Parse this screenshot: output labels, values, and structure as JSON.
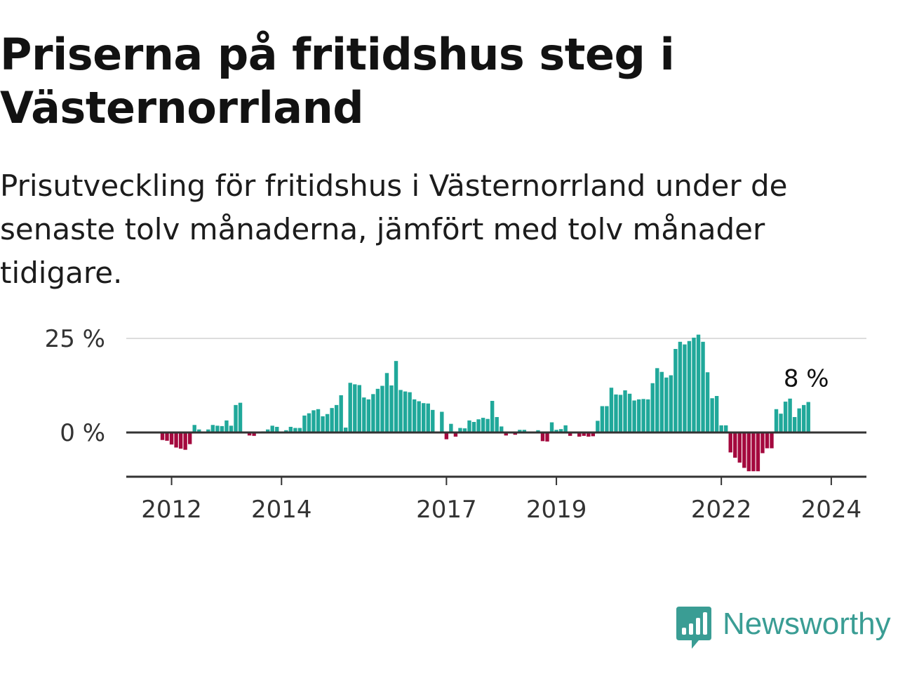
{
  "header": {
    "title": "Priserna på fritidshus steg i Västernorrland",
    "subtitle": "Prisutveckling för fritidshus i Västernorrland under de senaste tolv månaderna, jämfört med tolv månader tidigare."
  },
  "brand": {
    "name": "Newsworthy",
    "icon": "bar-chart-speech-icon",
    "color": "#3a9d94"
  },
  "chart_data": {
    "type": "bar",
    "x_start": "2011-11",
    "frequency": "monthly",
    "values": [
      -2.0,
      -2.2,
      -3.2,
      -4.0,
      -4.3,
      -4.6,
      -3.1,
      2.0,
      0.8,
      0.2,
      0.8,
      2.0,
      1.8,
      1.7,
      3.2,
      1.8,
      7.3,
      7.9,
      0.2,
      -0.8,
      -0.9,
      0.2,
      0.3,
      0.8,
      1.8,
      1.5,
      0.2,
      0.6,
      1.5,
      1.2,
      1.2,
      4.5,
      5.1,
      5.9,
      6.2,
      4.3,
      4.9,
      6.5,
      7.3,
      9.9,
      1.3,
      13.2,
      12.8,
      12.6,
      9.3,
      8.8,
      10.2,
      11.6,
      12.4,
      15.8,
      12.5,
      19.0,
      11.3,
      10.9,
      10.7,
      8.8,
      8.3,
      7.8,
      7.7,
      6.0,
      0.2,
      5.5,
      -1.8,
      2.3,
      -1.1,
      1.2,
      1.1,
      3.2,
      2.8,
      3.5,
      3.9,
      3.6,
      8.4,
      4.1,
      1.6,
      -0.8,
      0.1,
      -0.6,
      0.7,
      0.7,
      0.1,
      0.2,
      0.6,
      -2.3,
      -2.4,
      2.7,
      0.7,
      0.9,
      1.9,
      -0.9,
      -0.1,
      -1.1,
      -0.9,
      -1.1,
      -1.0,
      3.1,
      7.0,
      7.0,
      11.9,
      10.1,
      10.0,
      11.2,
      10.3,
      8.5,
      8.8,
      8.9,
      8.8,
      13.1,
      17.1,
      16.1,
      14.6,
      15.2,
      22.2,
      24.1,
      23.4,
      24.3,
      25.2,
      26.0,
      24.1,
      16.0,
      9.1,
      9.7,
      1.9,
      1.9,
      -5.3,
      -6.7,
      -8.0,
      -9.4,
      -10.3,
      -10.3,
      -10.3,
      -5.5,
      -4.2,
      -4.2,
      6.2,
      5.0,
      8.2,
      9.0,
      4.1,
      6.4,
      7.3,
      8.1
    ],
    "yticks": [
      0,
      25
    ],
    "ytick_labels": [
      "0 %",
      "25 %"
    ],
    "ylim": [
      -12,
      28
    ],
    "xticks": [
      "2012",
      "2014",
      "2017",
      "2019",
      "2022",
      "2024"
    ],
    "last_value_label": "8 %",
    "positive_color": "#20a89a",
    "negative_color": "#a4093e",
    "grid": true,
    "legend": "none"
  }
}
